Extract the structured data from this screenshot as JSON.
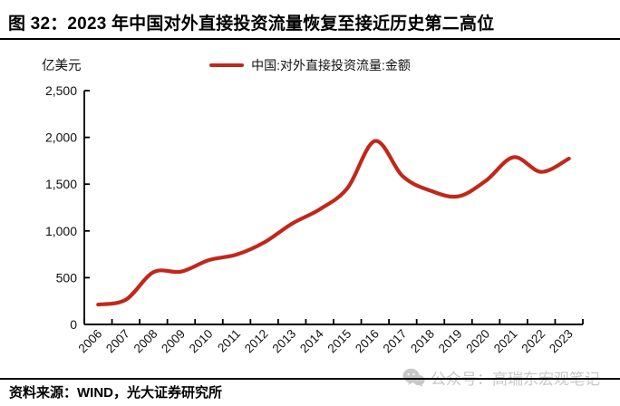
{
  "header": {
    "title": "图 32：2023 年中国对外直接投资流量恢复至接近历史第二高位"
  },
  "unit_label": "亿美元",
  "legend": {
    "label": "中国:对外直接投资流量:金额"
  },
  "footer": {
    "source": "资料来源：WIND，光大证券研究所"
  },
  "watermark": {
    "icon": "wechat-icon",
    "text": "公众号：高瑞东宏观笔记"
  },
  "colors": {
    "line": "#c0281a",
    "axis": "#000000",
    "text": "#111111",
    "watermark": "#c7c7c7"
  },
  "chart_data": {
    "type": "line",
    "title": "图 32：2023 年中国对外直接投资流量恢复至接近历史第二高位",
    "unit": "亿美元",
    "categories": [
      "2006",
      "2007",
      "2008",
      "2009",
      "2010",
      "2011",
      "2012",
      "2013",
      "2014",
      "2015",
      "2016",
      "2017",
      "2018",
      "2019",
      "2020",
      "2021",
      "2022",
      "2023"
    ],
    "series": [
      {
        "name": "中国:对外直接投资流量:金额",
        "values": [
          212,
          265,
          559,
          565,
          688,
          747,
          878,
          1078,
          1231,
          1457,
          1961,
          1583,
          1430,
          1369,
          1537,
          1788,
          1631,
          1773
        ]
      }
    ],
    "ylim": [
      0,
      2500
    ],
    "y_ticks": [
      0,
      500,
      1000,
      1500,
      2000,
      2500
    ],
    "y_tick_labels": [
      "0",
      "500",
      "1,000",
      "1,500",
      "2,000",
      "2,500"
    ],
    "grid": false,
    "smooth": true,
    "legend_position": "top-center"
  }
}
